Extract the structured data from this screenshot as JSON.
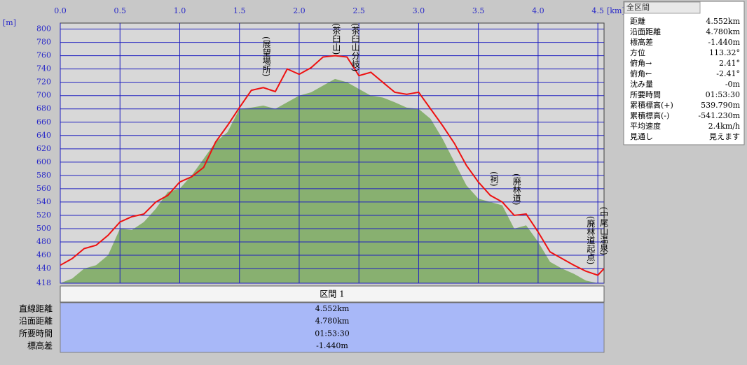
{
  "chart_data": {
    "type": "area-line",
    "x_unit": "[km]",
    "y_unit": "[m]",
    "x": [
      0,
      0.1,
      0.2,
      0.3,
      0.4,
      0.5,
      0.6,
      0.7,
      0.8,
      0.9,
      1.0,
      1.1,
      1.2,
      1.3,
      1.4,
      1.5,
      1.6,
      1.7,
      1.8,
      1.9,
      2.0,
      2.1,
      2.2,
      2.3,
      2.4,
      2.5,
      2.6,
      2.7,
      2.8,
      2.9,
      3.0,
      3.1,
      3.2,
      3.3,
      3.4,
      3.5,
      3.6,
      3.7,
      3.8,
      3.9,
      4.0,
      4.1,
      4.2,
      4.3,
      4.4,
      4.5,
      4.552
    ],
    "series": [
      {
        "color": "#ee1111",
        "values": [
          445,
          455,
          470,
          475,
          490,
          510,
          518,
          522,
          540,
          550,
          570,
          578,
          592,
          630,
          655,
          682,
          708,
          712,
          706,
          740,
          732,
          742,
          758,
          760,
          758,
          730,
          735,
          720,
          705,
          702,
          705,
          680,
          655,
          628,
          595,
          570,
          550,
          540,
          520,
          522,
          495,
          465,
          455,
          445,
          436,
          430,
          440
        ]
      },
      {
        "color": "#88b070",
        "values": [
          418,
          425,
          440,
          445,
          460,
          500,
          498,
          510,
          530,
          555,
          560,
          580,
          605,
          630,
          645,
          680,
          682,
          685,
          680,
          690,
          700,
          705,
          715,
          725,
          720,
          710,
          700,
          697,
          690,
          682,
          680,
          665,
          635,
          600,
          565,
          545,
          540,
          535,
          500,
          505,
          480,
          450,
          440,
          432,
          422,
          418,
          418
        ]
      }
    ],
    "xlim": [
      0,
      4.552
    ],
    "xticks": [
      {
        "value": 0,
        "label": "0.0"
      },
      0.5,
      {
        "value": 1,
        "label": "1.0"
      },
      1.5,
      {
        "value": 2,
        "label": "2.0"
      },
      2.5,
      {
        "value": 3,
        "label": "3.0"
      },
      3.5,
      {
        "value": 4,
        "label": "4.0"
      },
      4.5
    ],
    "ylim": [
      418,
      809
    ],
    "yticks": [
      418,
      440,
      460,
      480,
      500,
      520,
      540,
      560,
      580,
      600,
      620,
      640,
      660,
      680,
      700,
      720,
      740,
      760,
      780,
      800
    ],
    "grid": true,
    "annotations": [
      {
        "x": 1.725,
        "y": 789,
        "text": "(展望場所)"
      },
      {
        "x": 2.31,
        "y": 809,
        "text": "(茶臼山)"
      },
      {
        "x": 2.47,
        "y": 809,
        "text": "(茶臼山分岐)"
      },
      {
        "x": 3.63,
        "y": 586,
        "text": "(祠)"
      },
      {
        "x": 3.82,
        "y": 583,
        "text": "(廃林道)"
      },
      {
        "x": 4.44,
        "y": 519,
        "text": "(廃林道起点)"
      },
      {
        "x": 4.55,
        "y": 533,
        "text": "(中尾山温泉)"
      }
    ]
  },
  "summary": {
    "title": "全区間",
    "rows": [
      [
        "距離",
        "4.552km"
      ],
      [
        "沿面距離",
        "4.780km"
      ],
      [
        "標高差",
        "-1.440m"
      ],
      [
        "方位",
        "113.32°"
      ],
      [
        "俯角→",
        "2.41°"
      ],
      [
        "俯角←",
        "-2.41°"
      ],
      [
        "沈み量",
        "-0m"
      ],
      [
        "所要時間",
        "01:53:30"
      ],
      [
        "累積標高(+)",
        "539.790m"
      ],
      [
        "累積標高(-)",
        "-541.230m"
      ],
      [
        "平均速度",
        "2.4km/h"
      ],
      [
        "見通し",
        "見えます"
      ]
    ]
  },
  "section_table": {
    "header": "区間 1",
    "rows": [
      [
        "直線距離",
        "4.552km"
      ],
      [
        "沿面距離",
        "4.780km"
      ],
      [
        "所要時間",
        "01:53:30"
      ],
      [
        "標高差",
        "-1.440m"
      ]
    ]
  }
}
